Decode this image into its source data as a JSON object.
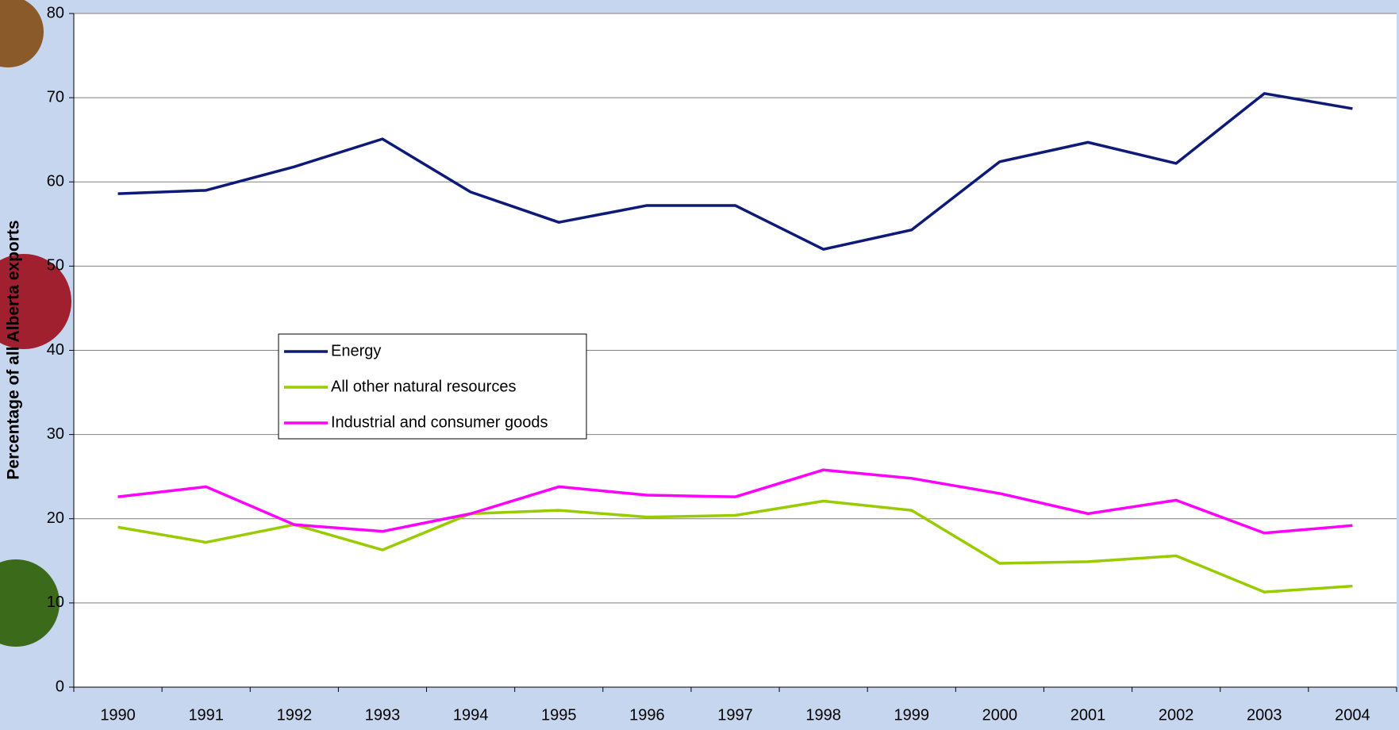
{
  "chart_data": {
    "type": "line",
    "y_label": "Percentage of all Alberta exports",
    "categories": [
      "1990",
      "1991",
      "1992",
      "1993",
      "1994",
      "1995",
      "1996",
      "1997",
      "1998",
      "1999",
      "2000",
      "2001",
      "2002",
      "2003",
      "2004"
    ],
    "series": [
      {
        "name": "Energy",
        "color": "#0d1a78",
        "values": [
          58.6,
          59.0,
          61.8,
          65.1,
          58.8,
          55.2,
          57.2,
          57.2,
          52.0,
          54.3,
          62.4,
          64.7,
          62.2,
          70.5,
          68.7
        ]
      },
      {
        "name": "All other natural resources",
        "color": "#99cc00",
        "values": [
          19.0,
          17.2,
          19.3,
          16.3,
          20.6,
          21.0,
          20.2,
          20.4,
          22.1,
          21.0,
          14.7,
          14.9,
          15.6,
          11.3,
          12.0
        ]
      },
      {
        "name": "Industrial and consumer goods",
        "color": "#ff00ff",
        "values": [
          22.6,
          23.8,
          19.3,
          18.5,
          20.6,
          23.8,
          22.8,
          22.6,
          25.8,
          24.8,
          23.0,
          20.6,
          22.2,
          18.3,
          19.2
        ]
      }
    ],
    "ylim": [
      0,
      80
    ],
    "yticks": [
      0,
      10,
      20,
      30,
      40,
      50,
      60,
      70,
      80
    ],
    "grid": true
  }
}
